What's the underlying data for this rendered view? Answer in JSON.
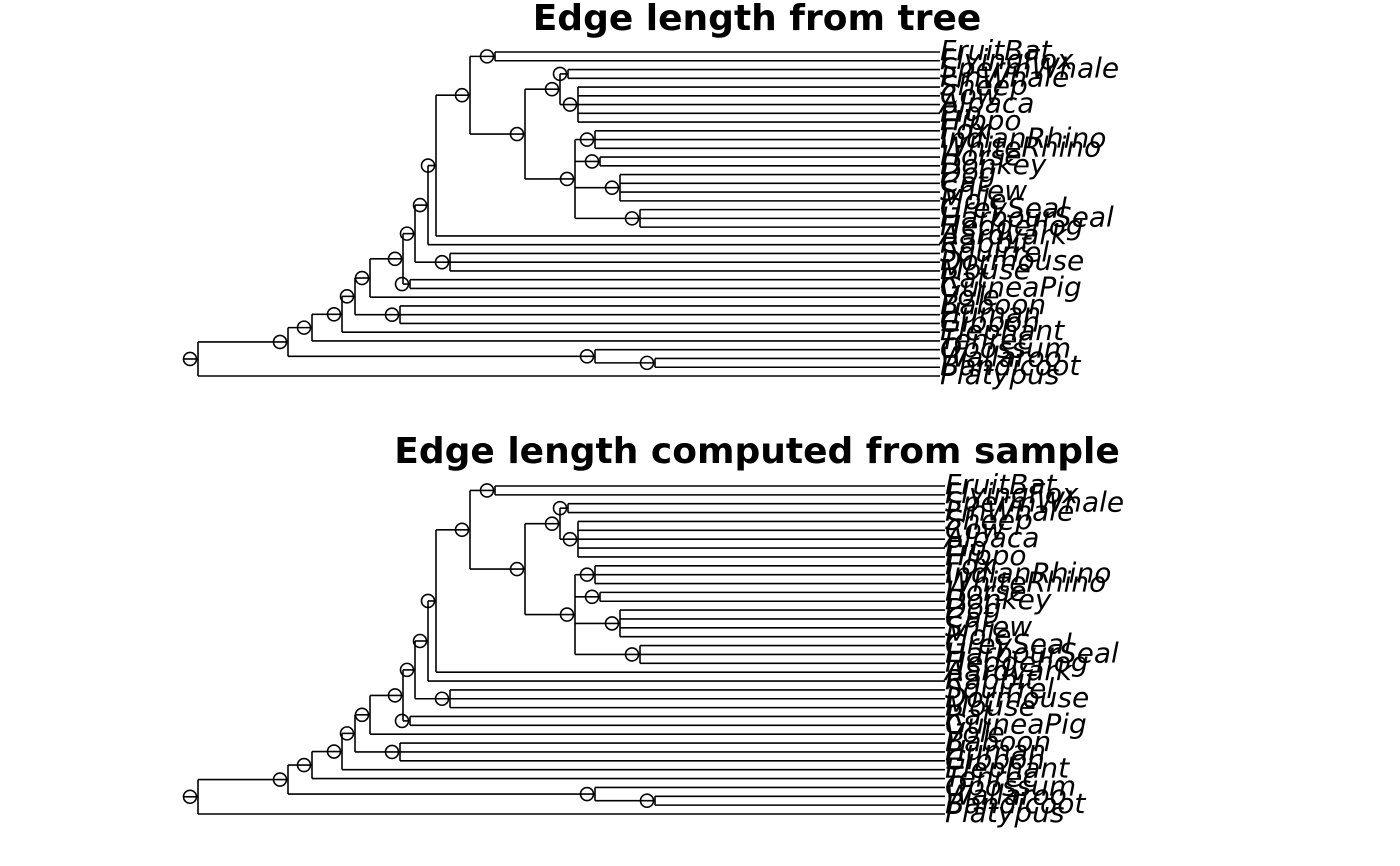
{
  "panels": [
    {
      "title": "Edge length from tree",
      "tips": [
        "FruitBat",
        "FlyingFox",
        "SpermWhale",
        "FinWhale",
        "Sheep",
        "Cow",
        "Alpaca",
        "Pig",
        "Hippo",
        "Fox",
        "IndianRhino",
        "WhiteRhino",
        "Horse",
        "Donkey",
        "Dog",
        "Cat",
        "Shrew",
        "Mole",
        "GreySeal",
        "HarbourSeal",
        "Hedgehog",
        "Aardvark",
        "Rabbit",
        "Squirrel",
        "Dormouse",
        "Mouse",
        "Rat",
        "GuineaPig",
        "Vole",
        "Baboon",
        "Human",
        "Gibbon",
        "Elephant",
        "Tenrec",
        "Opossum",
        "Wallaroo",
        "Bandicoot",
        "Platypus"
      ]
    },
    {
      "title": "Edge length computed from sample",
      "tips": [
        "FruitBat",
        "FlyingFox",
        "SpermWhale",
        "FinWhale",
        "Sheep",
        "Cow",
        "Alpaca",
        "Pig",
        "Hippo",
        "Fox",
        "IndianRhino",
        "WhiteRhino",
        "Horse",
        "Donkey",
        "Dog",
        "Cat",
        "Shrew",
        "Mole",
        "GreySeal",
        "HarbourSeal",
        "Hedgehog",
        "Aardvark",
        "Rabbit",
        "Squirrel",
        "Dormouse",
        "Mouse",
        "Rat",
        "GuineaPig",
        "Vole",
        "Baboon",
        "Human",
        "Gibbon",
        "Elephant",
        "Tenrec",
        "Opossum",
        "Wallaroo",
        "Bandicoot",
        "Platypus"
      ]
    }
  ]
}
